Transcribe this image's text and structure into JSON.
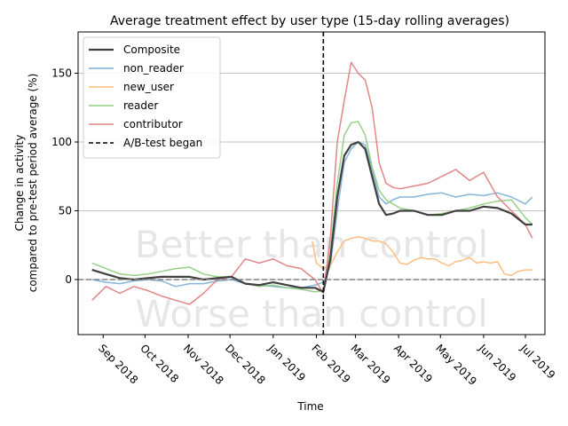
{
  "chart_data": {
    "type": "line",
    "title": "Average treatment effect by user type (15-day rolling averages)",
    "xlabel": "Time",
    "ylabel_line1": "Change in activity",
    "ylabel_line2": "compared to pre-test period average (%)",
    "ylim": [
      -40,
      180
    ],
    "yticks": [
      0,
      50,
      100,
      150
    ],
    "xlim": [
      "2018-08-14",
      "2019-07-15"
    ],
    "xticks": [
      {
        "date": "2018-09-01",
        "label": "Sep 2018"
      },
      {
        "date": "2018-10-01",
        "label": "Oct 2018"
      },
      {
        "date": "2018-11-01",
        "label": "Nov 2018"
      },
      {
        "date": "2018-12-01",
        "label": "Dec 2018"
      },
      {
        "date": "2019-01-01",
        "label": "Jan 2019"
      },
      {
        "date": "2019-02-01",
        "label": "Feb 2019"
      },
      {
        "date": "2019-03-01",
        "label": "Mar 2019"
      },
      {
        "date": "2019-04-01",
        "label": "Apr 2019"
      },
      {
        "date": "2019-05-01",
        "label": "May 2019"
      },
      {
        "date": "2019-06-01",
        "label": "Jun 2019"
      },
      {
        "date": "2019-07-01",
        "label": "Jul 2019"
      }
    ],
    "grid": "horizontal",
    "legend_position": "top-left",
    "annotations": {
      "better": "Better than control",
      "worse": "Worse than control"
    },
    "reference_lines": {
      "zero_line_y": 0,
      "test_start": {
        "date": "2019-02-06",
        "label": "A/B-test began"
      }
    },
    "series": [
      {
        "name": "Composite",
        "color": "#404040",
        "x": [
          "2018-08-24",
          "2018-09-03",
          "2018-09-13",
          "2018-09-23",
          "2018-10-03",
          "2018-10-13",
          "2018-10-23",
          "2018-11-02",
          "2018-11-12",
          "2018-11-22",
          "2018-12-02",
          "2018-12-12",
          "2018-12-22",
          "2019-01-01",
          "2019-01-11",
          "2019-01-21",
          "2019-01-31",
          "2019-02-06",
          "2019-02-11",
          "2019-02-16",
          "2019-02-21",
          "2019-02-26",
          "2019-03-03",
          "2019-03-08",
          "2019-03-13",
          "2019-03-18",
          "2019-03-23",
          "2019-03-28",
          "2019-04-02",
          "2019-04-12",
          "2019-04-22",
          "2019-05-02",
          "2019-05-12",
          "2019-05-22",
          "2019-06-01",
          "2019-06-11",
          "2019-06-21",
          "2019-07-01",
          "2019-07-06"
        ],
        "values": [
          7,
          4,
          1,
          0,
          1,
          2,
          2,
          2,
          0,
          1,
          2,
          -3,
          -4,
          -2,
          -4,
          -6,
          -6,
          -9,
          15,
          60,
          90,
          98,
          100,
          95,
          75,
          55,
          47,
          48,
          50,
          50,
          47,
          47,
          50,
          50,
          53,
          52,
          48,
          40,
          40
        ]
      },
      {
        "name": "non_reader",
        "color": "#7fb0d8",
        "x": [
          "2018-08-24",
          "2018-09-03",
          "2018-09-13",
          "2018-09-23",
          "2018-10-03",
          "2018-10-13",
          "2018-10-23",
          "2018-11-02",
          "2018-11-12",
          "2018-11-22",
          "2018-12-02",
          "2018-12-12",
          "2018-12-22",
          "2019-01-01",
          "2019-01-11",
          "2019-01-21",
          "2019-01-31",
          "2019-02-06",
          "2019-02-11",
          "2019-02-16",
          "2019-02-21",
          "2019-02-26",
          "2019-03-03",
          "2019-03-08",
          "2019-03-13",
          "2019-03-18",
          "2019-03-23",
          "2019-03-28",
          "2019-04-02",
          "2019-04-12",
          "2019-04-22",
          "2019-05-02",
          "2019-05-12",
          "2019-05-22",
          "2019-06-01",
          "2019-06-11",
          "2019-06-21",
          "2019-07-01",
          "2019-07-06"
        ],
        "values": [
          0,
          -2,
          -3,
          -1,
          0,
          -1,
          -5,
          -3,
          -3,
          -1,
          0,
          -3,
          -4,
          -5,
          -6,
          -6,
          -4,
          -2,
          10,
          50,
          85,
          95,
          100,
          98,
          80,
          60,
          55,
          58,
          60,
          60,
          62,
          63,
          60,
          62,
          61,
          63,
          60,
          55,
          60
        ]
      },
      {
        "name": "new_user",
        "color": "#ffbb78",
        "x": [
          "2019-01-29",
          "2019-02-01",
          "2019-02-06",
          "2019-02-11",
          "2019-02-16",
          "2019-02-21",
          "2019-02-26",
          "2019-03-03",
          "2019-03-08",
          "2019-03-13",
          "2019-03-18",
          "2019-03-23",
          "2019-03-28",
          "2019-04-02",
          "2019-04-07",
          "2019-04-12",
          "2019-04-17",
          "2019-04-22",
          "2019-04-27",
          "2019-05-02",
          "2019-05-07",
          "2019-05-12",
          "2019-05-17",
          "2019-05-22",
          "2019-05-27",
          "2019-06-01",
          "2019-06-06",
          "2019-06-11",
          "2019-06-16",
          "2019-06-21",
          "2019-06-26",
          "2019-07-01",
          "2019-07-06"
        ],
        "values": [
          28,
          12,
          8,
          10,
          20,
          28,
          30,
          31,
          30,
          28,
          28,
          26,
          20,
          12,
          11,
          14,
          16,
          15,
          15,
          12,
          10,
          13,
          14,
          16,
          12,
          13,
          12,
          13,
          4,
          3,
          6,
          7,
          7
        ]
      },
      {
        "name": "reader",
        "color": "#90cf80",
        "x": [
          "2018-08-24",
          "2018-09-03",
          "2018-09-13",
          "2018-09-23",
          "2018-10-03",
          "2018-10-13",
          "2018-10-23",
          "2018-11-02",
          "2018-11-12",
          "2018-11-22",
          "2018-12-02",
          "2018-12-12",
          "2018-12-22",
          "2019-01-01",
          "2019-01-11",
          "2019-01-21",
          "2019-01-31",
          "2019-02-06",
          "2019-02-11",
          "2019-02-16",
          "2019-02-21",
          "2019-02-26",
          "2019-03-03",
          "2019-03-08",
          "2019-03-13",
          "2019-03-18",
          "2019-03-23",
          "2019-03-28",
          "2019-04-02",
          "2019-04-12",
          "2019-04-22",
          "2019-05-02",
          "2019-05-12",
          "2019-05-22",
          "2019-06-01",
          "2019-06-11",
          "2019-06-21",
          "2019-07-01",
          "2019-07-06"
        ],
        "values": [
          12,
          8,
          4,
          3,
          4,
          6,
          8,
          9,
          4,
          2,
          2,
          -3,
          -5,
          -4,
          -6,
          -7,
          -9,
          -8,
          20,
          70,
          105,
          114,
          115,
          105,
          82,
          65,
          58,
          55,
          52,
          50,
          47,
          48,
          50,
          52,
          55,
          57,
          58,
          45,
          40
        ]
      },
      {
        "name": "contributor",
        "color": "#e08080",
        "x": [
          "2018-08-24",
          "2018-09-03",
          "2018-09-13",
          "2018-09-23",
          "2018-10-03",
          "2018-10-13",
          "2018-10-23",
          "2018-11-02",
          "2018-11-12",
          "2018-11-22",
          "2018-12-02",
          "2018-12-12",
          "2018-12-22",
          "2019-01-01",
          "2019-01-11",
          "2019-01-21",
          "2019-01-31",
          "2019-02-06",
          "2019-02-11",
          "2019-02-16",
          "2019-02-21",
          "2019-02-26",
          "2019-03-03",
          "2019-03-08",
          "2019-03-13",
          "2019-03-18",
          "2019-03-23",
          "2019-03-28",
          "2019-04-02",
          "2019-04-12",
          "2019-04-22",
          "2019-05-02",
          "2019-05-12",
          "2019-05-22",
          "2019-06-01",
          "2019-06-11",
          "2019-06-21",
          "2019-07-01",
          "2019-07-06"
        ],
        "values": [
          -15,
          -5,
          -10,
          -5,
          -8,
          -12,
          -15,
          -18,
          -10,
          0,
          2,
          15,
          12,
          15,
          10,
          8,
          0,
          -10,
          30,
          100,
          130,
          158,
          150,
          145,
          125,
          85,
          70,
          67,
          66,
          68,
          70,
          75,
          80,
          72,
          78,
          60,
          50,
          40,
          30
        ]
      }
    ]
  }
}
